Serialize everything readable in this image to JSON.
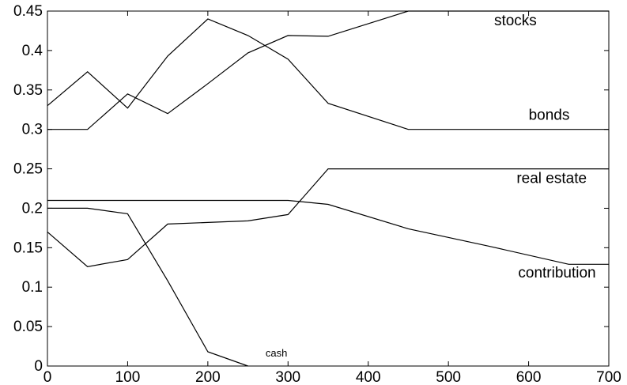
{
  "chart_data": {
    "type": "line",
    "title": "",
    "xlabel": "",
    "ylabel": "",
    "xlim": [
      0,
      700
    ],
    "ylim": [
      0,
      0.45
    ],
    "grid": false,
    "legend": "none",
    "x_ticks": [
      0,
      100,
      200,
      300,
      400,
      500,
      600,
      700
    ],
    "x_tick_labels": [
      "0",
      "100",
      "200",
      "300",
      "400",
      "500",
      "600",
      "700"
    ],
    "y_ticks": [
      0,
      0.05,
      0.1,
      0.15,
      0.2,
      0.25,
      0.3,
      0.35,
      0.4,
      0.45
    ],
    "y_tick_labels": [
      "0",
      "0.05",
      "0.1",
      "0.15",
      "0.2",
      "0.25",
      "0.3",
      "0.35",
      "0.4",
      "0.45"
    ],
    "series": [
      {
        "name": "stocks",
        "label_size": "normal",
        "x": [
          0,
          50,
          100,
          150,
          200,
          250,
          300,
          350,
          450,
          700
        ],
        "y": [
          0.3,
          0.3,
          0.345,
          0.32,
          0.358,
          0.397,
          0.419,
          0.418,
          0.45,
          0.45
        ]
      },
      {
        "name": "bonds",
        "label_size": "normal",
        "x": [
          0,
          50,
          100,
          150,
          200,
          250,
          300,
          350,
          450,
          700
        ],
        "y": [
          0.33,
          0.373,
          0.327,
          0.393,
          0.44,
          0.419,
          0.389,
          0.333,
          0.3,
          0.3
        ]
      },
      {
        "name": "real estate",
        "label_size": "normal",
        "x": [
          0,
          50,
          100,
          150,
          200,
          250,
          300,
          350,
          450,
          700
        ],
        "y": [
          0.17,
          0.126,
          0.135,
          0.18,
          0.182,
          0.184,
          0.192,
          0.25,
          0.25,
          0.25
        ]
      },
      {
        "name": "contribution",
        "label_size": "normal",
        "x": [
          0,
          50,
          100,
          150,
          200,
          250,
          300,
          350,
          450,
          550,
          650,
          700
        ],
        "y": [
          0.21,
          0.21,
          0.21,
          0.21,
          0.21,
          0.21,
          0.21,
          0.205,
          0.174,
          0.152,
          0.129,
          0.129
        ]
      },
      {
        "name": "cash",
        "label_size": "small",
        "x": [
          0,
          50,
          100,
          150,
          200,
          250
        ],
        "y": [
          0.2,
          0.2,
          0.193,
          0.108,
          0.018,
          0.0
        ]
      }
    ],
    "annotations": [
      {
        "text": "stocks",
        "x": 557,
        "y": 0.432
      },
      {
        "text": "bonds",
        "x": 600,
        "y": 0.312
      },
      {
        "text": "real estate",
        "x": 585,
        "y": 0.232
      },
      {
        "text": "contribution",
        "x": 587,
        "y": 0.112
      },
      {
        "text": "cash",
        "x": 272,
        "y": 0.012
      }
    ]
  }
}
